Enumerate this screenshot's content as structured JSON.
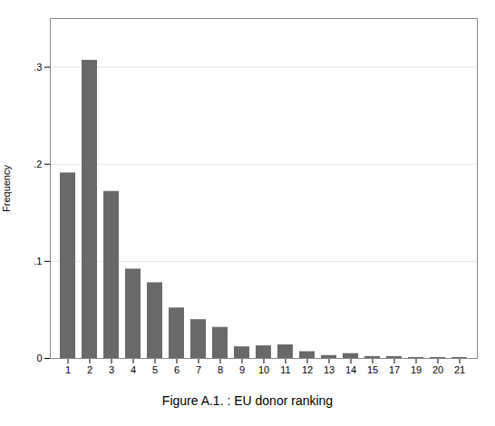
{
  "chart_data": {
    "type": "bar",
    "categories": [
      1,
      2,
      3,
      4,
      5,
      6,
      7,
      8,
      9,
      10,
      11,
      12,
      13,
      14,
      15,
      17,
      19,
      20,
      21
    ],
    "values": [
      0.191,
      0.307,
      0.172,
      0.092,
      0.078,
      0.052,
      0.04,
      0.032,
      0.012,
      0.013,
      0.014,
      0.007,
      0.003,
      0.005,
      0.002,
      0.002,
      0.001,
      0.001,
      0.001
    ],
    "color": "#696969",
    "ylabel": "Frequency",
    "caption": "Figure A.1. : EU donor ranking",
    "ylim": [
      0,
      0.35
    ],
    "yticks": [
      0,
      {
        "value": 0.1,
        "label": ".1"
      },
      {
        "value": 0.2,
        "label": ".2"
      },
      {
        "value": 0.3,
        "label": ".3"
      }
    ],
    "grid": true
  }
}
